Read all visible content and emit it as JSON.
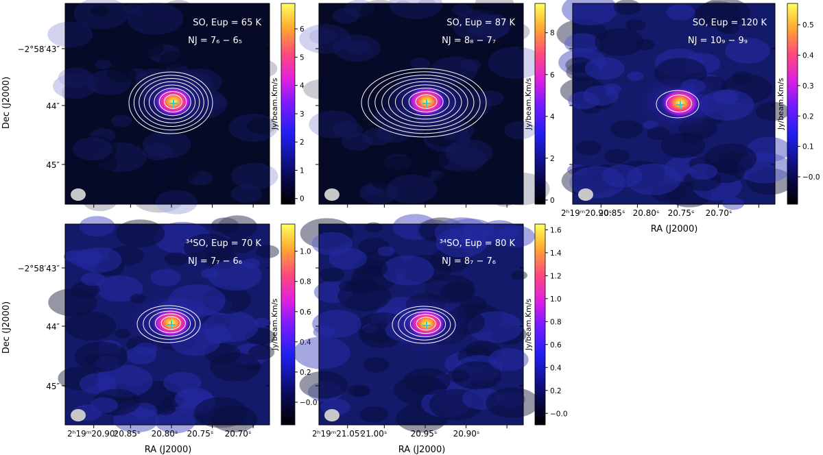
{
  "figure": {
    "dec_axis_label": "Dec (J2000)",
    "ra_axis_label": "RA (J2000)"
  },
  "colors": {
    "map_low": "#060a26",
    "map_mid": "#2d2ad8",
    "contour": "#ffffff",
    "marker": "#38c8d8",
    "beam": "#c8c8c8"
  },
  "chart_data": [
    {
      "type": "heatmap",
      "species": "SO",
      "E_up_K": 65,
      "transition": "7_6 - 6_5",
      "title_line1": "SO, Eup = 65 K",
      "title_line2": "NJ = 7₆ − 6₅",
      "colorbar_label": "Jy/beam.Km/s",
      "colorbar_ticks": [
        0,
        1,
        2,
        3,
        4,
        5,
        6
      ],
      "colorbar_range": [
        -0.2,
        6.9
      ],
      "peak_value": 6.9,
      "dec_tick_labels": [
        "−2°58′43″",
        "44″",
        "45″"
      ],
      "ra_tick_labels": [],
      "contour_levels": 8
    },
    {
      "type": "heatmap",
      "species": "SO",
      "E_up_K": 87,
      "transition": "8_8 - 7_7",
      "title_line1": "SO, Eup = 87 K",
      "title_line2": "NJ = 8₈ − 7₇",
      "colorbar_label": "Jy/beam.Km/s",
      "colorbar_ticks": [
        0,
        2,
        4,
        6,
        8
      ],
      "colorbar_range": [
        -0.2,
        9.4
      ],
      "peak_value": 9.4,
      "dec_tick_labels": [],
      "ra_tick_labels": [],
      "contour_levels": 9
    },
    {
      "type": "heatmap",
      "species": "SO",
      "E_up_K": 120,
      "transition": "10_9 - 9_9",
      "title_line1": "SO, Eup = 120 K",
      "title_line2": "NJ = 10₉ − 9₉",
      "colorbar_label": "Jy/beam.Km/s",
      "colorbar_ticks": [
        -0.0,
        0.1,
        0.2,
        0.3,
        0.4,
        0.5
      ],
      "colorbar_tick_labels": [
        "−0.0",
        "0.1",
        "0.2",
        "0.3",
        "0.4",
        "0.5"
      ],
      "colorbar_range": [
        -0.09,
        0.57
      ],
      "peak_value": 0.57,
      "dec_tick_labels": [],
      "ra_tick_labels": [
        "2ʰ19ᵐ20.90ˢ",
        "20.85ˢ",
        "20.80ˢ",
        "20.75ˢ",
        "20.70ˢ"
      ],
      "contour_levels": 2
    },
    {
      "type": "heatmap",
      "species": "34SO",
      "E_up_K": 70,
      "transition": "7_7 - 6_6",
      "title_line1": "³⁴SO, Eup = 70 K",
      "title_line2": "NJ = 7₇ − 6₆",
      "colorbar_label": "Jy/beam.Km/s",
      "colorbar_ticks": [
        -0.0,
        0.2,
        0.4,
        0.6,
        0.8,
        1.0
      ],
      "colorbar_tick_labels": [
        "−0.0",
        "0.2",
        "0.4",
        "0.6",
        "0.8",
        "1.0"
      ],
      "colorbar_range": [
        -0.15,
        1.18
      ],
      "peak_value": 1.18,
      "dec_tick_labels": [
        "−2°58′43″",
        "44″",
        "45″"
      ],
      "ra_tick_labels": [
        "2ʰ19ᵐ20.90ˢ",
        "20.85ˢ",
        "20.80ˢ",
        "20.75ˢ",
        "20.70ˢ"
      ],
      "contour_levels": 5
    },
    {
      "type": "heatmap",
      "species": "34SO",
      "E_up_K": 80,
      "transition": "8_7 - 7_6",
      "title_line1": "³⁴SO, Eup = 80 K",
      "title_line2": "NJ = 8₇ − 7₆",
      "colorbar_label": "Jy/beam.Km/s",
      "colorbar_ticks": [
        0.0,
        0.2,
        0.4,
        0.6,
        0.8,
        1.0,
        1.2,
        1.4,
        1.6
      ],
      "colorbar_tick_labels": [
        "−0.0",
        "0.2",
        "0.4",
        "0.6",
        "0.8",
        "1.0",
        "1.2",
        "1.4",
        "1.6"
      ],
      "colorbar_range": [
        -0.1,
        1.65
      ],
      "peak_value": 1.65,
      "dec_tick_labels": [],
      "ra_tick_labels": [
        "2ʰ19ᵐ21.05ˢ",
        "21.00ˢ",
        "20.95ˢ",
        "20.90ˢ"
      ],
      "contour_levels": 5
    }
  ]
}
